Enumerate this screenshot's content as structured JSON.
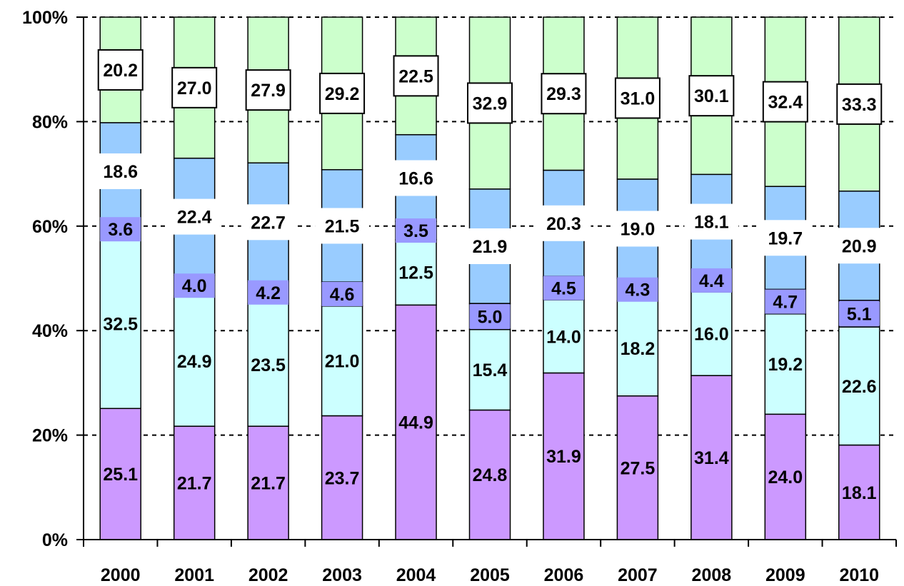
{
  "chart_data": {
    "type": "bar",
    "stacked": true,
    "percent_stacked": true,
    "categories": [
      "2000",
      "2001",
      "2002",
      "2003",
      "2004",
      "2005",
      "2006",
      "2007",
      "2008",
      "2009",
      "2010"
    ],
    "series": [
      {
        "color": "#cc99ff",
        "values": [
          25.1,
          21.7,
          21.7,
          23.7,
          44.9,
          24.8,
          31.9,
          27.5,
          31.4,
          24.0,
          18.1
        ],
        "labels": [
          "25.1",
          "21.7",
          "21.7",
          "23.7",
          "44.9",
          "24.8",
          "31.9",
          "27.5",
          "31.4",
          "24.0",
          "18.1"
        ]
      },
      {
        "color": "#ccffff",
        "values": [
          32.5,
          24.9,
          23.5,
          21.0,
          12.5,
          15.4,
          14.0,
          18.2,
          16.0,
          19.2,
          22.6
        ],
        "labels": [
          "32.5",
          "24.9",
          "23.5",
          "21.0",
          "12.5",
          "15.4",
          "14.0",
          "18.2",
          "16.0",
          "19.2",
          "22.6"
        ]
      },
      {
        "color": "#9999ff",
        "values": [
          3.6,
          4.0,
          4.2,
          4.6,
          3.5,
          5.0,
          4.5,
          4.3,
          4.4,
          4.7,
          5.1
        ],
        "labels": [
          "3.6",
          "4.0",
          "4.2",
          "4.6",
          "3.5",
          "5.0",
          "4.5",
          "4.3",
          "4.4",
          "4.7",
          "5.1"
        ]
      },
      {
        "color": "#99ccff",
        "values": [
          18.6,
          22.4,
          22.7,
          21.5,
          16.6,
          21.9,
          20.3,
          19.0,
          18.1,
          19.7,
          20.9
        ],
        "labels": [
          "18.6",
          "22.4",
          "22.7",
          "21.5",
          "16.6",
          "21.9",
          "20.3",
          "19.0",
          "18.1",
          "19.7",
          "20.9"
        ]
      },
      {
        "color": "#ccffcc",
        "values": [
          20.2,
          27.0,
          27.9,
          29.2,
          22.5,
          32.9,
          29.3,
          31.0,
          30.1,
          32.4,
          33.3
        ],
        "labels": [
          "20.2",
          "27.0",
          "27.9",
          "29.2",
          "22.5",
          "32.9",
          "29.3",
          "31.0",
          "30.1",
          "32.4",
          "33.3"
        ]
      }
    ],
    "yticks": [
      "0%",
      "20%",
      "40%",
      "60%",
      "80%",
      "100%"
    ],
    "ylim": [
      0,
      100
    ],
    "grid": true,
    "legend": "none"
  }
}
